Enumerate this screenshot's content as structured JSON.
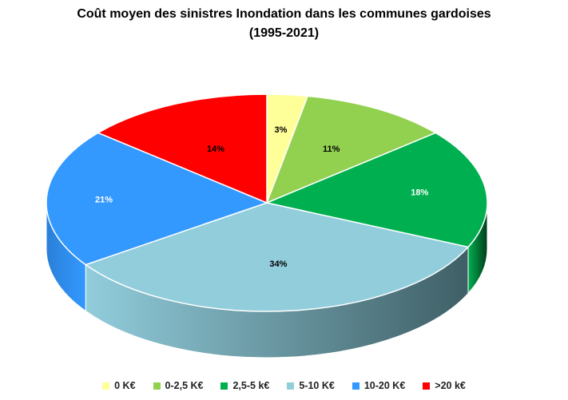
{
  "chart_data": {
    "type": "pie",
    "title_line1": "Coût moyen des sinistres Inondation dans les communes gardoises",
    "title_line2": "(1995-2021)",
    "categories": [
      "0 K€",
      "0-2,5 K€",
      "2,5-5 k€",
      "5-10 K€",
      "10-20 K€",
      ">20 k€"
    ],
    "values": [
      3,
      11,
      18,
      34,
      21,
      14
    ],
    "labels": [
      "3%",
      "11%",
      "18%",
      "34%",
      "21%",
      "14%"
    ],
    "colors": [
      "#FFFF99",
      "#92D050",
      "#00B050",
      "#92CDDC",
      "#3399FF",
      "#FF0000"
    ],
    "side_colors": [
      "#CCCC66",
      "#6E9E3A",
      "#003D1A",
      "#3F5F66",
      "#2A7FD8",
      "#B30000"
    ],
    "legend_position": "bottom",
    "style": "3d-pie"
  }
}
